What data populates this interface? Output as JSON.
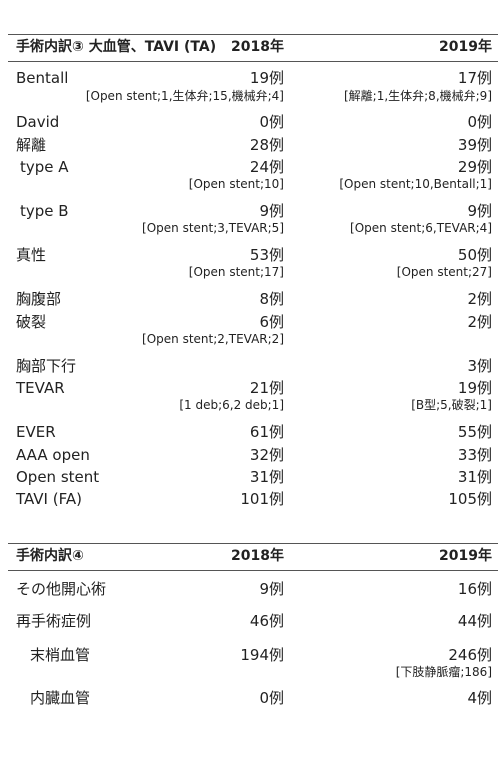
{
  "section3": {
    "title": "手術内訳③ 大血管、TAVI (TA)",
    "col2018": "2018年",
    "col2019": "2019年",
    "rows": [
      {
        "label": "Bentall",
        "v2018": "19例",
        "v2019": "17例",
        "n2018": "[Open stent;1,生体弁;15,機械弁;4]",
        "n2019": "[解離;1,生体弁;8,機械弁;9]"
      },
      {
        "label": "David",
        "v2018": "0例",
        "v2019": "0例"
      },
      {
        "label": "解離",
        "v2018": "28例",
        "v2019": "39例"
      },
      {
        "label": "type A",
        "v2018": "24例",
        "v2019": "29例",
        "n2018": "[Open stent;10]",
        "n2019": "[Open stent;10,Bentall;1]"
      },
      {
        "label": "type B",
        "v2018": "9例",
        "v2019": "9例",
        "n2018": "[Open stent;3,TEVAR;5]",
        "n2019": "[Open stent;6,TEVAR;4]"
      },
      {
        "label": "真性",
        "v2018": "53例",
        "v2019": "50例",
        "n2018": "[Open stent;17]",
        "n2019": "[Open stent;27]"
      },
      {
        "label": "胸腹部",
        "v2018": "8例",
        "v2019": "2例"
      },
      {
        "label": "破裂",
        "v2018": "6例",
        "v2019": "2例",
        "n2018": "[Open stent;2,TEVAR;2]"
      },
      {
        "label": "胸部下行",
        "v2019": "3例"
      },
      {
        "label": "TEVAR",
        "v2018": "21例",
        "v2019": "19例",
        "n2018": "[1 deb;6,2 deb;1]",
        "n2019": "[B型;5,破裂;1]"
      },
      {
        "label": "EVER",
        "v2018": "61例",
        "v2019": "55例"
      },
      {
        "label": "AAA open",
        "v2018": "32例",
        "v2019": "33例"
      },
      {
        "label": "Open stent",
        "v2018": "31例",
        "v2019": "31例"
      },
      {
        "label": "TAVI (FA)",
        "v2018": "101例",
        "v2019": "105例"
      }
    ]
  },
  "section4": {
    "title": "手術内訳④",
    "col2018": "2018年",
    "col2019": "2019年",
    "rows": [
      {
        "label": "その他開心術",
        "v2018": "9例",
        "v2019": "16例"
      },
      {
        "label": "再手術症例",
        "v2018": "46例",
        "v2019": "44例"
      },
      {
        "label": "末梢血管",
        "v2018": "194例",
        "v2019": "246例",
        "n2019": "[下肢静脈瘤;186]"
      },
      {
        "label": "内臓血管",
        "v2018": "0例",
        "v2019": "4例"
      }
    ]
  }
}
